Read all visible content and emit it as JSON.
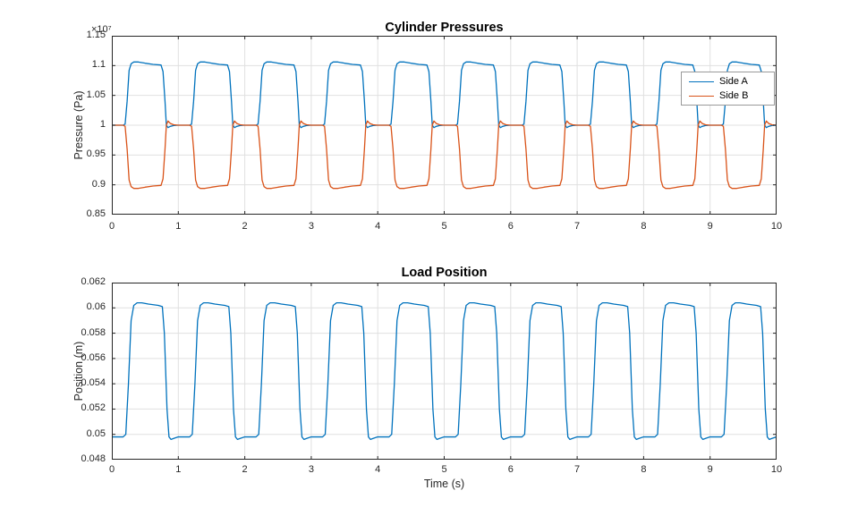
{
  "style": {
    "background": "#ffffff",
    "grid_color": "#e0e0e0",
    "axis_color": "#262626",
    "title_color": "#000000",
    "series_blue": "#0072BD",
    "series_orange": "#D95319"
  },
  "chart_data": [
    {
      "type": "line",
      "title": "Cylinder Pressures",
      "xlabel": "",
      "ylabel": "Pressure (Pa)",
      "y_exponent": "×10⁷",
      "units_note": "y values expressed in units of 10^7 Pa as shown by axis exponent",
      "xlim": [
        0,
        10
      ],
      "ylim": [
        0.85,
        1.15
      ],
      "xticks": [
        0,
        1,
        2,
        3,
        4,
        5,
        6,
        7,
        8,
        9,
        10
      ],
      "xtick_labels": [
        "0",
        "1",
        "2",
        "3",
        "4",
        "5",
        "6",
        "7",
        "8",
        "9",
        "10"
      ],
      "yticks": [
        0.85,
        0.9,
        0.95,
        1,
        1.05,
        1.1,
        1.15
      ],
      "ytick_labels": [
        "0.85",
        "0.9",
        "0.95",
        "1",
        "1.05",
        "1.1",
        "1.15"
      ],
      "grid": true,
      "legend": {
        "position": "northeast"
      },
      "series": [
        {
          "name": "Side A",
          "color": "#0072BD",
          "waveform": "square-like pulse, period 1 s, baseline 1.0e7 Pa, plateau ~1.105e7 Pa, slight undershoot to ~0.996e7 after falling edge",
          "period": 1,
          "cycles": 10,
          "cycle": [
            [
              0,
              1.0
            ],
            [
              0.17,
              1.0
            ],
            [
              0.2,
              1.002
            ],
            [
              0.23,
              1.04
            ],
            [
              0.26,
              1.092
            ],
            [
              0.29,
              1.103
            ],
            [
              0.33,
              1.106
            ],
            [
              0.4,
              1.106
            ],
            [
              0.5,
              1.104
            ],
            [
              0.62,
              1.102
            ],
            [
              0.74,
              1.101
            ],
            [
              0.77,
              1.09
            ],
            [
              0.8,
              1.04
            ],
            [
              0.82,
              1.0
            ],
            [
              0.845,
              0.996
            ],
            [
              0.88,
              0.998
            ],
            [
              0.93,
              0.9995
            ],
            [
              1,
              1.0
            ]
          ]
        },
        {
          "name": "Side B",
          "color": "#D95319",
          "waveform": "inverted square-like pulse, period 1 s, baseline 1.0e7 Pa, plateau ~0.895e7 Pa, slight overshoot to ~1.007e7 after rising edge",
          "period": 1,
          "cycles": 10,
          "cycle": [
            [
              0,
              1.0
            ],
            [
              0.17,
              1.0
            ],
            [
              0.2,
              0.998
            ],
            [
              0.23,
              0.96
            ],
            [
              0.26,
              0.908
            ],
            [
              0.29,
              0.897
            ],
            [
              0.33,
              0.894
            ],
            [
              0.4,
              0.894
            ],
            [
              0.5,
              0.896
            ],
            [
              0.62,
              0.898
            ],
            [
              0.74,
              0.899
            ],
            [
              0.77,
              0.91
            ],
            [
              0.8,
              0.96
            ],
            [
              0.82,
              1.0
            ],
            [
              0.845,
              1.007
            ],
            [
              0.88,
              1.003
            ],
            [
              0.93,
              1.0008
            ],
            [
              1,
              1.0
            ]
          ]
        }
      ]
    },
    {
      "type": "line",
      "title": "Load Position",
      "xlabel": "Time (s)",
      "ylabel": "Position (m)",
      "xlim": [
        0,
        10
      ],
      "ylim": [
        0.048,
        0.062
      ],
      "xticks": [
        0,
        1,
        2,
        3,
        4,
        5,
        6,
        7,
        8,
        9,
        10
      ],
      "xtick_labels": [
        "0",
        "1",
        "2",
        "3",
        "4",
        "5",
        "6",
        "7",
        "8",
        "9",
        "10"
      ],
      "yticks": [
        0.048,
        0.05,
        0.052,
        0.054,
        0.056,
        0.058,
        0.06,
        0.062
      ],
      "ytick_labels": [
        "0.048",
        "0.05",
        "0.052",
        "0.054",
        "0.056",
        "0.058",
        "0.06",
        "0.062"
      ],
      "grid": true,
      "series": [
        {
          "name": "Position",
          "color": "#0072BD",
          "waveform": "square-like pulse, period 1 s, low ~0.0497 m, high ~0.0603 m",
          "period": 1,
          "cycles": 10,
          "cycle": [
            [
              0,
              0.0498
            ],
            [
              0.17,
              0.0498
            ],
            [
              0.21,
              0.05
            ],
            [
              0.25,
              0.054
            ],
            [
              0.29,
              0.059
            ],
            [
              0.33,
              0.0602
            ],
            [
              0.38,
              0.0604
            ],
            [
              0.45,
              0.0604
            ],
            [
              0.55,
              0.0603
            ],
            [
              0.7,
              0.0602
            ],
            [
              0.76,
              0.0601
            ],
            [
              0.79,
              0.058
            ],
            [
              0.83,
              0.052
            ],
            [
              0.86,
              0.0498
            ],
            [
              0.89,
              0.0496
            ],
            [
              0.94,
              0.0497
            ],
            [
              1,
              0.0498
            ]
          ]
        }
      ]
    }
  ]
}
